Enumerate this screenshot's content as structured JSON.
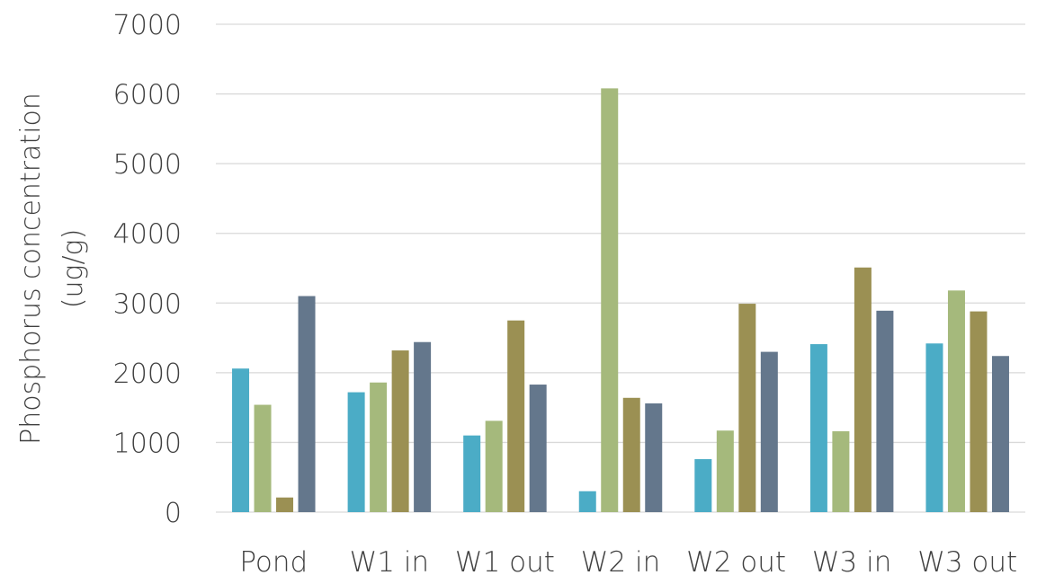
{
  "chart_data": {
    "type": "bar",
    "title": "",
    "xlabel": "",
    "ylabel_lines": [
      "Phosphorus concentration",
      "(ug/g)"
    ],
    "ylim": [
      0,
      7000
    ],
    "yticks": [
      0,
      1000,
      2000,
      3000,
      4000,
      5000,
      6000,
      7000
    ],
    "grid": true,
    "legend": "none",
    "categories": [
      "Pond",
      "W1 in",
      "W1 out",
      "W2 in",
      "W2 out",
      "W3 in",
      "W3 out"
    ],
    "series": [
      {
        "color": "#4bacc6",
        "values": [
          2060,
          1720,
          1100,
          300,
          760,
          2410,
          2420
        ]
      },
      {
        "color": "#a5b97c",
        "values": [
          1540,
          1860,
          1310,
          6080,
          1170,
          1160,
          3180
        ]
      },
      {
        "color": "#9b9053",
        "values": [
          210,
          2320,
          2750,
          1640,
          2990,
          3510,
          2880
        ]
      },
      {
        "color": "#64778c",
        "values": [
          3100,
          2440,
          1830,
          1560,
          2300,
          2890,
          2240
        ]
      }
    ]
  }
}
